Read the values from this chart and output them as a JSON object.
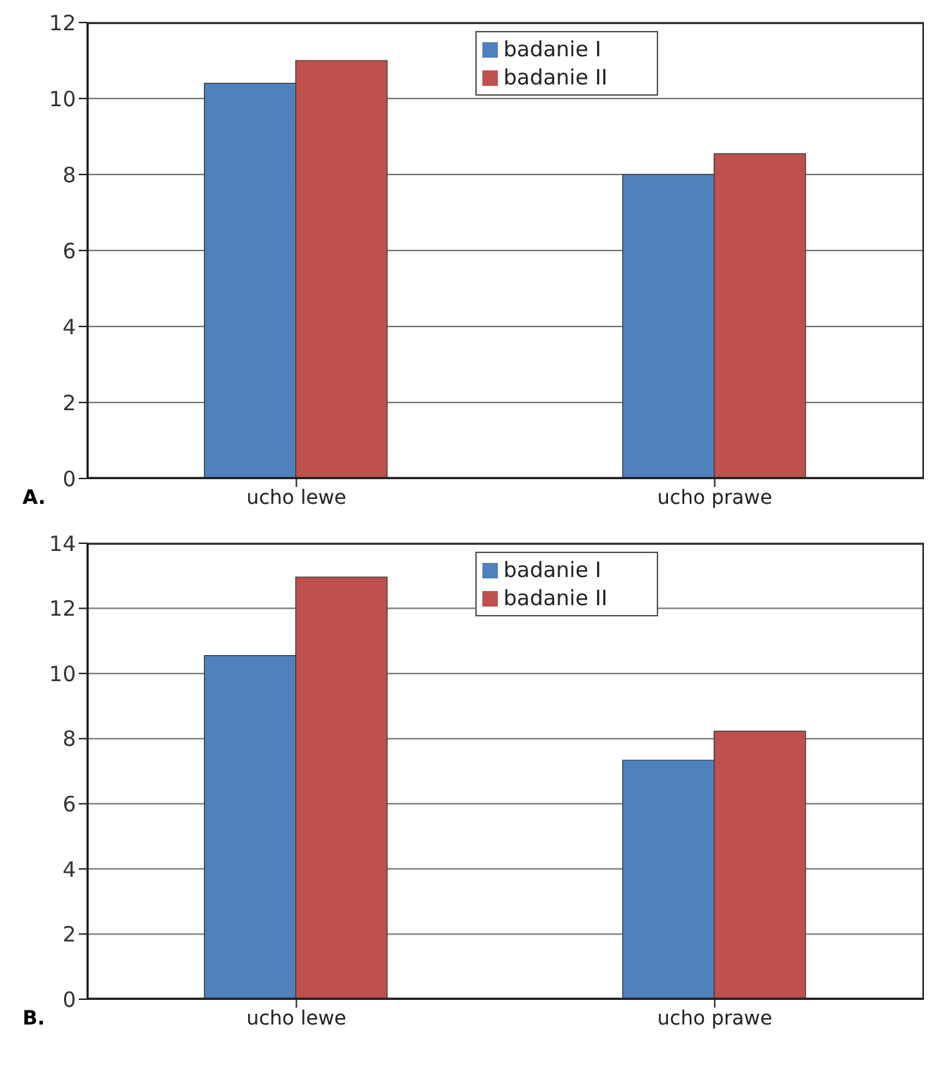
{
  "chart_data": [
    {
      "type": "bar",
      "categories": [
        "ucho lewe",
        "ucho prawe"
      ],
      "series": [
        {
          "name": "badanie I",
          "color": "#4f81bd",
          "values": [
            10.4,
            8.0
          ]
        },
        {
          "name": "badanie II",
          "color": "#c0504d",
          "values": [
            11.0,
            8.55
          ]
        }
      ],
      "ylim": [
        0,
        12
      ],
      "yticks": [
        0,
        2,
        4,
        6,
        8,
        10,
        12
      ],
      "grid": "y",
      "legend": "top",
      "annotations": [
        "A."
      ]
    },
    {
      "type": "bar",
      "categories": [
        "ucho lewe",
        "ucho prawe"
      ],
      "series": [
        {
          "name": "badanie I",
          "color": "#4f81bd",
          "values": [
            10.55,
            7.34
          ]
        },
        {
          "name": "badanie II",
          "color": "#c0504d",
          "values": [
            12.96,
            8.23
          ]
        }
      ],
      "ylim": [
        0,
        14
      ],
      "yticks": [
        0,
        2,
        4,
        6,
        8,
        10,
        12,
        14
      ],
      "grid": "y",
      "legend": "top",
      "annotations": [
        "B."
      ]
    }
  ]
}
